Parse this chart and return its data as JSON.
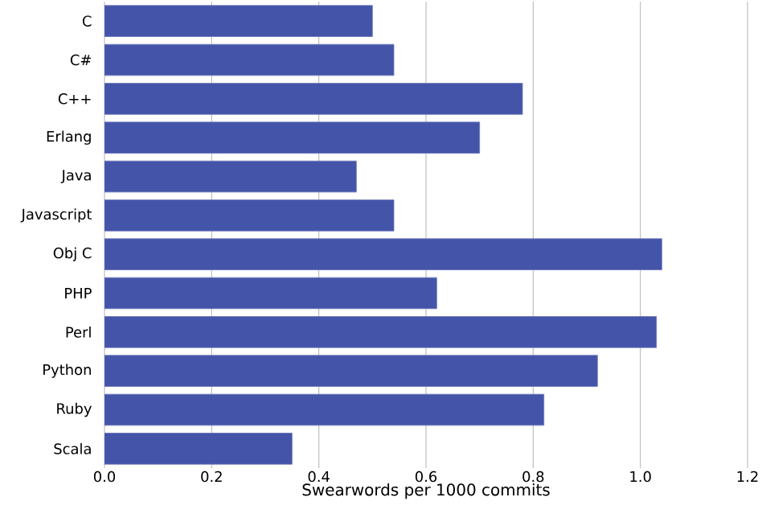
{
  "chart_data": {
    "type": "bar",
    "orientation": "horizontal",
    "xlabel": "Swearwords per 1000 commits",
    "categories": [
      "C",
      "C#",
      "C++",
      "Erlang",
      "Java",
      "Javascript",
      "Obj C",
      "PHP",
      "Perl",
      "Python",
      "Ruby",
      "Scala"
    ],
    "values": [
      0.5,
      0.54,
      0.78,
      0.7,
      0.47,
      0.54,
      1.04,
      0.62,
      1.03,
      0.92,
      0.82,
      0.35
    ],
    "color": "#4454a8",
    "xlim": [
      0,
      1.2
    ],
    "xticks": [
      {
        "value": 0,
        "label": "0.0"
      },
      0.2,
      0.4,
      0.6,
      0.8,
      {
        "value": 1,
        "label": "1.0"
      },
      1.2
    ],
    "grid": "x"
  }
}
